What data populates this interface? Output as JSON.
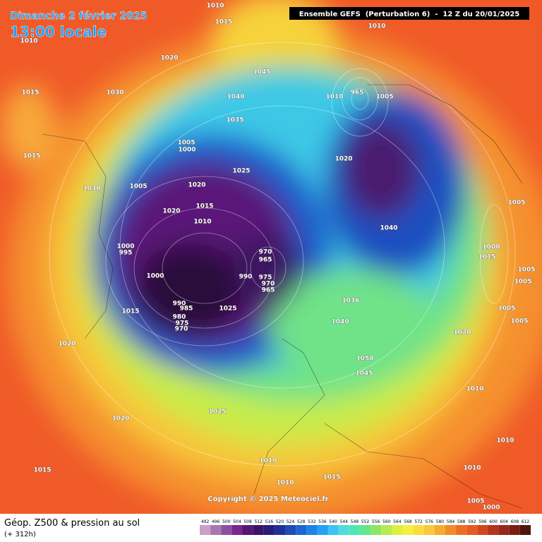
{
  "header": {
    "date": "Dimanche 2 février 2025",
    "time": "13:00 locale",
    "run": "Ensemble GEFS  (Perturbation 6)  -  12 Z du 20/01/2025"
  },
  "copyright": "Copyright © 2025 Meteociel.fr",
  "footer": {
    "title": "Géop. Z500 & pression au sol",
    "lead": "(+ 312h)"
  },
  "colorbar": {
    "values": [
      492,
      496,
      500,
      504,
      508,
      512,
      516,
      520,
      524,
      528,
      532,
      536,
      540,
      544,
      548,
      552,
      556,
      560,
      564,
      568,
      572,
      576,
      580,
      584,
      588,
      592,
      596,
      600,
      604,
      608,
      612
    ],
    "colors": [
      "#c8a0c8",
      "#a878b4",
      "#8c50a0",
      "#78288c",
      "#5a1478",
      "#3c1464",
      "#281e78",
      "#1e3296",
      "#1e4bb4",
      "#1e64d2",
      "#1e82e6",
      "#28a0f0",
      "#3cc3f0",
      "#50dcdc",
      "#50e6b4",
      "#64e68c",
      "#8ce664",
      "#b4eb50",
      "#dcf03c",
      "#f5f03c",
      "#fadc3c",
      "#fac83c",
      "#f5aa32",
      "#f08c28",
      "#eb6e23",
      "#e65a1e",
      "#d2461e",
      "#b4321e",
      "#962819",
      "#781e14",
      "#50140f"
    ]
  },
  "isobar_labels": [
    1010,
    1015,
    1010,
    1020,
    1015,
    1030,
    1045,
    1040,
    1035,
    1005,
    1000,
    1015,
    1025,
    1005,
    1020,
    1030,
    1015,
    1020,
    1010,
    1000,
    995,
    970,
    965,
    1000,
    990,
    975,
    970,
    965,
    990,
    985,
    1025,
    1015,
    980,
    975,
    970,
    1036,
    1040,
    1020,
    1050,
    1045,
    1025,
    1020,
    1010,
    1010,
    1015,
    1015,
    1010,
    1010,
    1010,
    965,
    1005,
    1020,
    1040,
    1005,
    1000,
    1015,
    1005,
    1005,
    1005,
    1005,
    1020,
    1010,
    1010,
    1005,
    1000
  ]
}
